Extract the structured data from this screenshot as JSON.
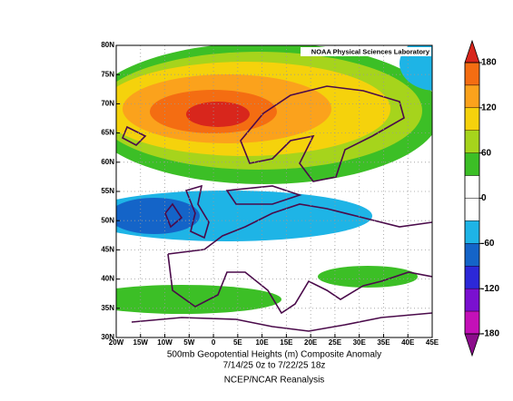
{
  "map": {
    "credit": "NOAA Physical Sciences Laboratory",
    "title_lines": [
      "500mb Geopotential Heights (m)   Composite Anomaly",
      "7/14/25 0z  to 7/22/25 18z"
    ],
    "source": "NCEP/NCAR Reanalysis",
    "lon_ticks": [
      {
        "value": -20,
        "label": "20W"
      },
      {
        "value": -15,
        "label": "15W"
      },
      {
        "value": -10,
        "label": "10W"
      },
      {
        "value": -5,
        "label": "5W"
      },
      {
        "value": 0,
        "label": "0"
      },
      {
        "value": 5,
        "label": "5E"
      },
      {
        "value": 10,
        "label": "10E"
      },
      {
        "value": 15,
        "label": "15E"
      },
      {
        "value": 20,
        "label": "20E"
      },
      {
        "value": 25,
        "label": "25E"
      },
      {
        "value": 30,
        "label": "30E"
      },
      {
        "value": 35,
        "label": "35E"
      },
      {
        "value": 40,
        "label": "40E"
      },
      {
        "value": 45,
        "label": "45E"
      }
    ],
    "lat_ticks": [
      {
        "value": 30,
        "label": "30N"
      },
      {
        "value": 35,
        "label": "35N"
      },
      {
        "value": 40,
        "label": "40N"
      },
      {
        "value": 45,
        "label": "45N"
      },
      {
        "value": 50,
        "label": "50N"
      },
      {
        "value": 55,
        "label": "55N"
      },
      {
        "value": 60,
        "label": "60N"
      },
      {
        "value": 65,
        "label": "65N"
      },
      {
        "value": 70,
        "label": "70N"
      },
      {
        "value": 75,
        "label": "75N"
      },
      {
        "value": 80,
        "label": "80N"
      }
    ],
    "colorbar": {
      "ticks": [
        180,
        120,
        60,
        0,
        -60,
        -120,
        -180
      ],
      "colors": [
        "#d8261c",
        "#f46d12",
        "#fba21c",
        "#f5d20c",
        "#a6d41c",
        "#3cbf26",
        "#ffffff",
        "#ffffff",
        "#1eb4e6",
        "#1464c8",
        "#2c28d8",
        "#7a10d0",
        "#c410b8",
        "#8c0c8c"
      ]
    }
  }
}
